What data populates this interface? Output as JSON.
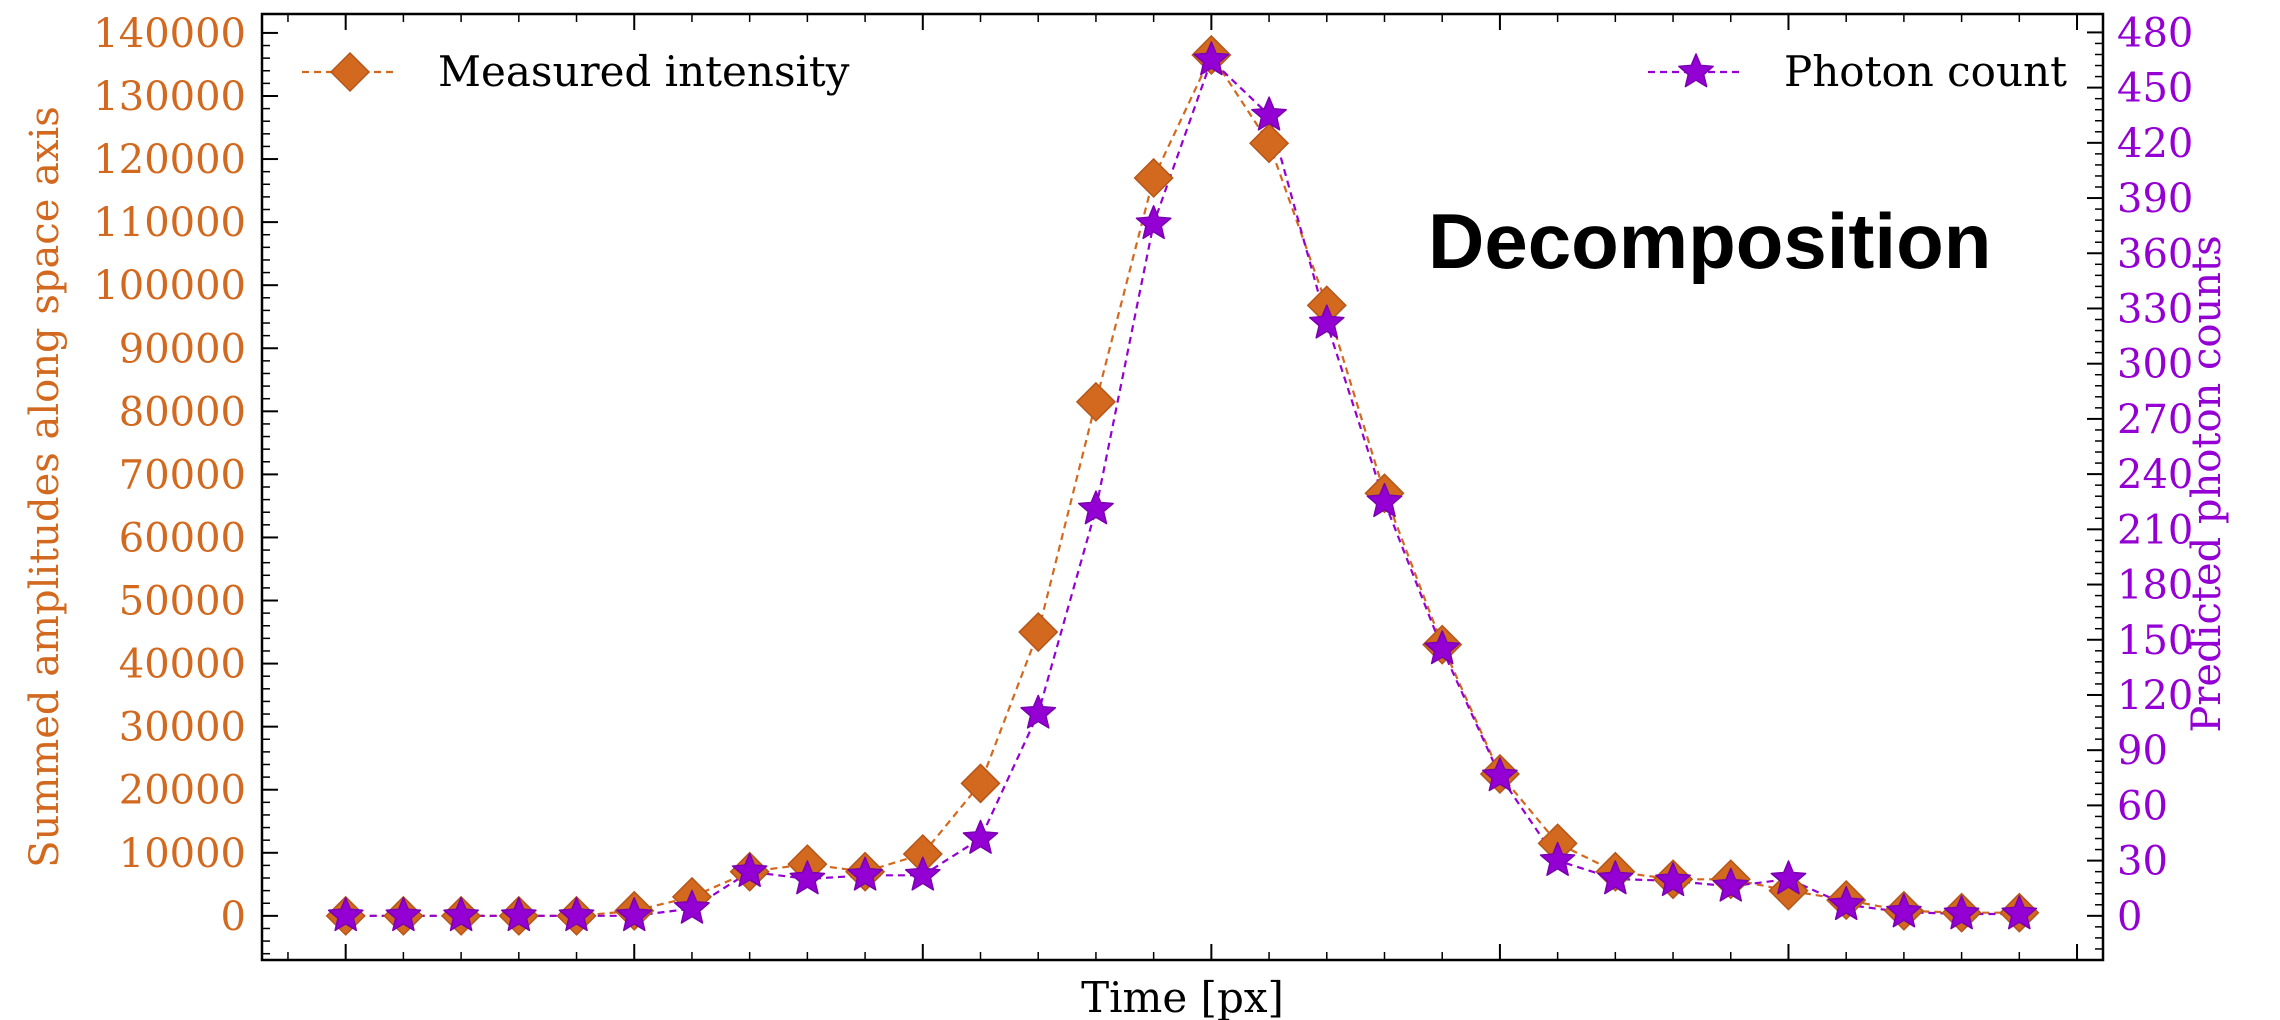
{
  "chart_data": {
    "type": "line",
    "title": "",
    "annotation": "Decomposition",
    "xlabel": "Time [px]",
    "x": [
      0,
      1,
      2,
      3,
      4,
      5,
      6,
      7,
      8,
      9,
      10,
      11,
      12,
      13,
      14,
      15,
      16,
      17,
      18,
      19,
      20,
      21,
      22,
      23,
      24,
      25,
      26,
      27,
      28,
      29
    ],
    "xlim": [
      -1.45,
      30.45
    ],
    "left_axis": {
      "label": "Summed amplitudes along space axis",
      "ylim": [
        -7000,
        143000
      ],
      "ticks": [
        0,
        10000,
        20000,
        30000,
        40000,
        50000,
        60000,
        70000,
        80000,
        90000,
        100000,
        110000,
        120000,
        130000,
        140000
      ],
      "color": "#d2691e"
    },
    "right_axis": {
      "label": "Predicted photon counts",
      "ylim": [
        -24,
        490
      ],
      "ticks": [
        0,
        30,
        60,
        90,
        120,
        150,
        180,
        210,
        240,
        270,
        300,
        330,
        360,
        390,
        420,
        450,
        480
      ],
      "color": "#9400d3"
    },
    "series": [
      {
        "name": "Measured intensity",
        "axis": "left",
        "color": "#d2691e",
        "marker": "diamond",
        "values": [
          0,
          0,
          0,
          0,
          0,
          800,
          3000,
          7000,
          8200,
          7000,
          9800,
          21000,
          45000,
          81500,
          117000,
          136500,
          122500,
          96800,
          67000,
          43000,
          22500,
          11500,
          7000,
          5800,
          5800,
          4000,
          2500,
          800,
          500,
          500
        ]
      },
      {
        "name": "Photon count",
        "axis": "right",
        "color": "#9400d3",
        "marker": "star",
        "values": [
          0,
          0,
          0,
          0,
          0,
          0,
          4,
          24,
          20,
          22,
          22,
          42,
          110,
          221,
          376,
          465,
          435,
          322,
          225,
          145,
          76,
          30,
          20,
          19,
          16,
          20,
          6,
          2,
          1,
          1
        ]
      }
    ],
    "grid": false,
    "legend": [
      {
        "series": 0,
        "position": "top-left"
      },
      {
        "series": 1,
        "position": "top-right"
      }
    ]
  }
}
